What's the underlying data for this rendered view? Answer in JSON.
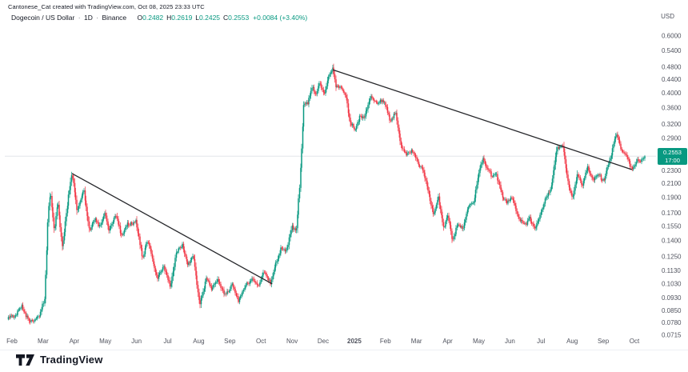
{
  "header": {
    "attribution": "Cantonese_Cat created with TradingView.com, Oct 08, 2025 23:33 UTC",
    "symbol": "Dogecoin / US Dollar",
    "separator": "·",
    "timeframe": "1D",
    "exchange": "Binance",
    "ohlc": {
      "open_label": "O",
      "open": "0.2482",
      "high_label": "H",
      "high": "0.2619",
      "low_label": "L",
      "low": "0.2425",
      "close_label": "C",
      "close": "0.2553",
      "change": "+0.0084 (+3.40%)"
    }
  },
  "price_axis": {
    "currency": "USD",
    "last_price": {
      "value": "0.2553",
      "countdown": "17:00"
    }
  },
  "time_axis": {
    "labels": [
      {
        "label": "Feb",
        "t": 0
      },
      {
        "label": "Mar",
        "t": 1
      },
      {
        "label": "Apr",
        "t": 2
      },
      {
        "label": "May",
        "t": 3
      },
      {
        "label": "Jun",
        "t": 4
      },
      {
        "label": "Jul",
        "t": 5
      },
      {
        "label": "Aug",
        "t": 6
      },
      {
        "label": "Sep",
        "t": 7
      },
      {
        "label": "Oct",
        "t": 8
      },
      {
        "label": "Nov",
        "t": 9
      },
      {
        "label": "Dec",
        "t": 10
      },
      {
        "label": "2025",
        "t": 11,
        "bold": true
      },
      {
        "label": "Feb",
        "t": 12
      },
      {
        "label": "Mar",
        "t": 13
      },
      {
        "label": "Apr",
        "t": 14
      },
      {
        "label": "May",
        "t": 15
      },
      {
        "label": "Jun",
        "t": 16
      },
      {
        "label": "Jul",
        "t": 17
      },
      {
        "label": "Aug",
        "t": 18
      },
      {
        "label": "Sep",
        "t": 19
      },
      {
        "label": "Oct",
        "t": 20
      }
    ]
  },
  "footer": {
    "logo_text": "TradingView"
  },
  "colors": {
    "up": "#089981",
    "down": "#F23645",
    "trendline": "#26272b",
    "axis_text": "#50535e",
    "price_line": "#e3e5ea",
    "label_bg": "#089981",
    "text": "#131722"
  },
  "chart_data": {
    "type": "candlestick",
    "title": "Dogecoin / US Dollar · 1D · Binance",
    "scale": "log",
    "x_unit": "months since Feb 2024 axis label",
    "x_range": [
      -0.15,
      20.33
    ],
    "y_ticks": [
      0.6,
      0.54,
      0.48,
      0.44,
      0.4,
      0.36,
      0.32,
      0.29,
      0.23,
      0.21,
      0.19,
      0.17,
      0.155,
      0.14,
      0.125,
      0.113,
      0.103,
      0.093,
      0.085,
      0.078,
      0.0715
    ],
    "last_close": 0.2553,
    "keypoints": [
      [
        -0.15,
        0.08
      ],
      [
        0.1,
        0.082
      ],
      [
        0.31,
        0.088
      ],
      [
        0.59,
        0.078
      ],
      [
        0.9,
        0.083
      ],
      [
        1.05,
        0.092
      ],
      [
        1.16,
        0.17
      ],
      [
        1.23,
        0.2
      ],
      [
        1.36,
        0.15
      ],
      [
        1.47,
        0.185
      ],
      [
        1.62,
        0.131
      ],
      [
        1.8,
        0.19
      ],
      [
        1.93,
        0.2257
      ],
      [
        2.08,
        0.175
      ],
      [
        2.31,
        0.198
      ],
      [
        2.49,
        0.15
      ],
      [
        2.65,
        0.163
      ],
      [
        2.83,
        0.155
      ],
      [
        2.98,
        0.17
      ],
      [
        3.11,
        0.15
      ],
      [
        3.34,
        0.168
      ],
      [
        3.52,
        0.145
      ],
      [
        3.73,
        0.157
      ],
      [
        3.98,
        0.16
      ],
      [
        4.19,
        0.125
      ],
      [
        4.37,
        0.14
      ],
      [
        4.68,
        0.107
      ],
      [
        4.88,
        0.118
      ],
      [
        5.09,
        0.1
      ],
      [
        5.27,
        0.128
      ],
      [
        5.48,
        0.135
      ],
      [
        5.66,
        0.118
      ],
      [
        5.84,
        0.125
      ],
      [
        6.04,
        0.088
      ],
      [
        6.25,
        0.108
      ],
      [
        6.43,
        0.098
      ],
      [
        6.61,
        0.108
      ],
      [
        6.81,
        0.095
      ],
      [
        7.07,
        0.102
      ],
      [
        7.28,
        0.092
      ],
      [
        7.46,
        0.1
      ],
      [
        7.71,
        0.108
      ],
      [
        7.89,
        0.1
      ],
      [
        8.1,
        0.112
      ],
      [
        8.3,
        0.104
      ],
      [
        8.48,
        0.118
      ],
      [
        8.66,
        0.135
      ],
      [
        8.82,
        0.128
      ],
      [
        9.0,
        0.158
      ],
      [
        9.13,
        0.148
      ],
      [
        9.25,
        0.21
      ],
      [
        9.38,
        0.38
      ],
      [
        9.51,
        0.37
      ],
      [
        9.64,
        0.42
      ],
      [
        9.77,
        0.4
      ],
      [
        9.9,
        0.43
      ],
      [
        10.03,
        0.395
      ],
      [
        10.15,
        0.445
      ],
      [
        10.31,
        0.475
      ],
      [
        10.41,
        0.42
      ],
      [
        10.54,
        0.415
      ],
      [
        10.72,
        0.4
      ],
      [
        10.87,
        0.32
      ],
      [
        11.03,
        0.31
      ],
      [
        11.18,
        0.34
      ],
      [
        11.31,
        0.33
      ],
      [
        11.49,
        0.39
      ],
      [
        11.65,
        0.375
      ],
      [
        11.83,
        0.38
      ],
      [
        12.01,
        0.365
      ],
      [
        12.16,
        0.33
      ],
      [
        12.34,
        0.345
      ],
      [
        12.52,
        0.27
      ],
      [
        12.67,
        0.255
      ],
      [
        12.85,
        0.27
      ],
      [
        13.03,
        0.245
      ],
      [
        13.19,
        0.235
      ],
      [
        13.37,
        0.2
      ],
      [
        13.55,
        0.17
      ],
      [
        13.7,
        0.19
      ],
      [
        13.88,
        0.155
      ],
      [
        14.01,
        0.165
      ],
      [
        14.16,
        0.14
      ],
      [
        14.32,
        0.158
      ],
      [
        14.47,
        0.152
      ],
      [
        14.65,
        0.175
      ],
      [
        14.83,
        0.185
      ],
      [
        15.04,
        0.235
      ],
      [
        15.13,
        0.252
      ],
      [
        15.26,
        0.235
      ],
      [
        15.42,
        0.22
      ],
      [
        15.55,
        0.228
      ],
      [
        15.76,
        0.19
      ],
      [
        15.94,
        0.185
      ],
      [
        16.07,
        0.19
      ],
      [
        16.28,
        0.165
      ],
      [
        16.45,
        0.155
      ],
      [
        16.63,
        0.165
      ],
      [
        16.79,
        0.152
      ],
      [
        16.99,
        0.17
      ],
      [
        17.17,
        0.19
      ],
      [
        17.35,
        0.21
      ],
      [
        17.51,
        0.27
      ],
      [
        17.69,
        0.28
      ],
      [
        17.87,
        0.21
      ],
      [
        18.02,
        0.19
      ],
      [
        18.18,
        0.225
      ],
      [
        18.33,
        0.21
      ],
      [
        18.51,
        0.235
      ],
      [
        18.69,
        0.215
      ],
      [
        18.84,
        0.225
      ],
      [
        19.02,
        0.215
      ],
      [
        19.2,
        0.245
      ],
      [
        19.41,
        0.3
      ],
      [
        19.56,
        0.27
      ],
      [
        19.72,
        0.26
      ],
      [
        19.92,
        0.23
      ],
      [
        20.08,
        0.25
      ],
      [
        20.18,
        0.245
      ],
      [
        20.33,
        0.2553
      ]
    ],
    "trendlines": [
      {
        "from": [
          1.93,
          0.2257
        ],
        "to": [
          8.36,
          0.103
        ]
      },
      {
        "from": [
          10.31,
          0.472
        ],
        "to": [
          19.92,
          0.232
        ]
      }
    ]
  }
}
